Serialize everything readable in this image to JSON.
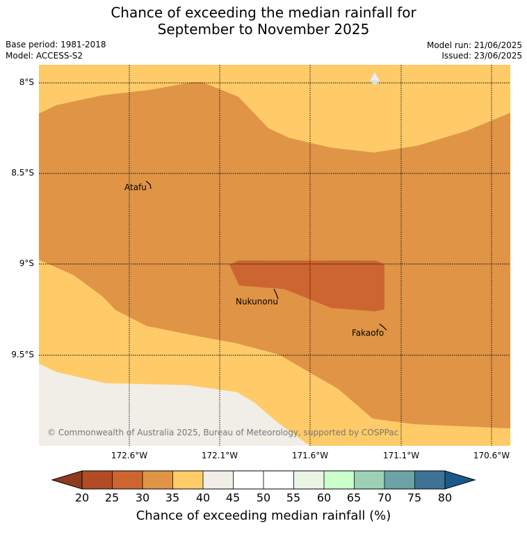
{
  "header": {
    "title_line1": "Chance of exceeding the median rainfall for",
    "title_line2": "September to November 2025",
    "base_period": "Base period: 1981-2018",
    "model": "Model: ACCESS-S2",
    "model_run": "Model run: 21/06/2025",
    "issued": "Issued: 23/06/2025"
  },
  "map": {
    "lat_labels": [
      "8°S",
      "8.5°S",
      "9°S",
      "9.5°S"
    ],
    "lon_labels": [
      "172.6°W",
      "172.1°W",
      "171.6°W",
      "171.1°W",
      "170.6°W"
    ],
    "places": [
      {
        "name": "Atafu"
      },
      {
        "name": "Nukunonu"
      },
      {
        "name": "Fakaofo"
      }
    ],
    "copyright": "© Commonwealth of Australia 2025, Bureau of Meteorology, supported by COSPPac",
    "colors": {
      "c20_25": "#b14c25",
      "c25_30": "#cd6531",
      "c30_35": "#e09446",
      "c35_40": "#fecb68",
      "c40_45": "#f1ede7",
      "c45_55": "#ffffff",
      "c55_60": "#eaf5e6",
      "c60_65": "#ccffcc",
      "c65_70": "#9dd1b6",
      "c70_75": "#6ba3a7",
      "c75_80": "#3f7396",
      "c_low_ext": "#8f3b1f",
      "c_high_ext": "#1a5a8a"
    },
    "north_arrow_icon": "north-arrow-icon"
  },
  "colorbar": {
    "ticks": [
      "20",
      "25",
      "30",
      "35",
      "40",
      "45",
      "50",
      "55",
      "60",
      "65",
      "70",
      "75",
      "80"
    ],
    "label": "Chance of exceeding median rainfall (%)"
  }
}
